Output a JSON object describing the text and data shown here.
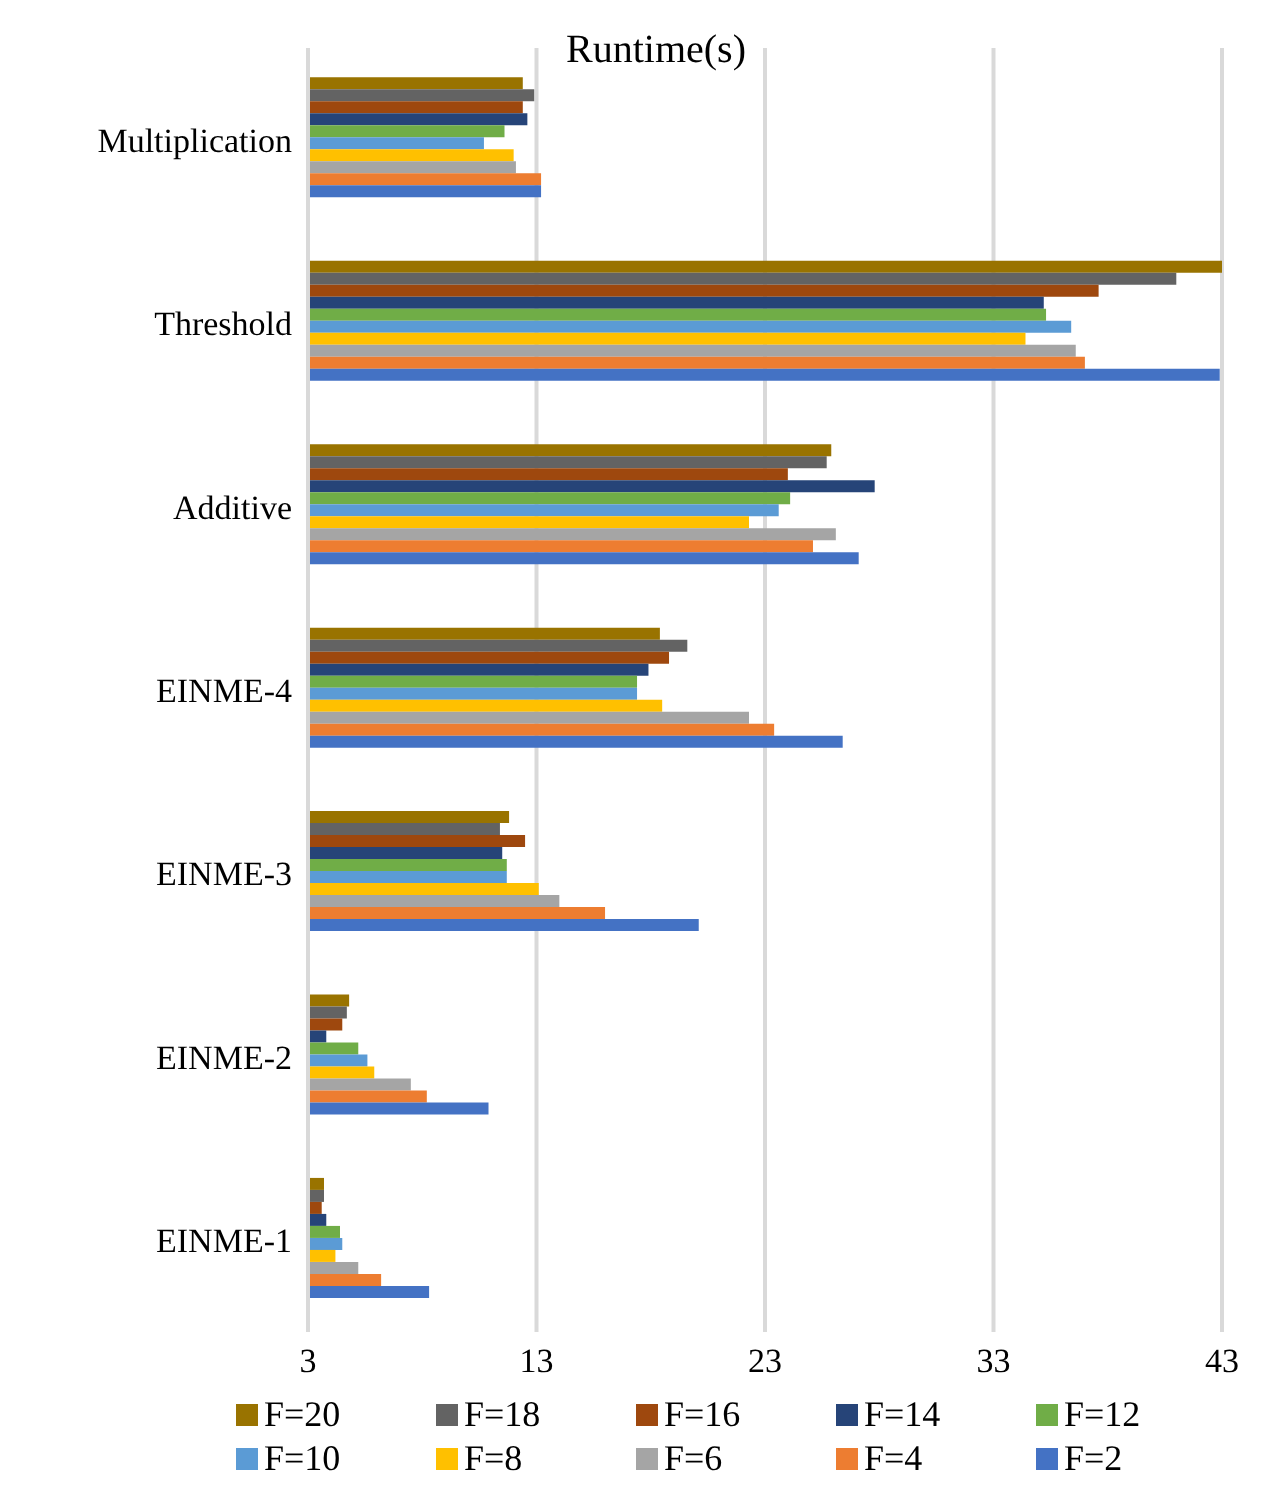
{
  "chart_data": {
    "type": "bar",
    "orientation": "horizontal",
    "title": "Runtime(s)",
    "categories": [
      "Multiplication",
      "Threshold",
      "Additive",
      "EINME-4",
      "EINME-3",
      "EINME-2",
      "EINME-1"
    ],
    "series": [
      {
        "name": "F=20",
        "color": "#997300",
        "values": [
          12.4,
          43,
          25.9,
          18.4,
          11.8,
          4.8,
          3.7
        ]
      },
      {
        "name": "F=18",
        "color": "#636363",
        "values": [
          12.9,
          41.0,
          25.7,
          19.6,
          11.4,
          4.7,
          3.7
        ]
      },
      {
        "name": "F=16",
        "color": "#9e480e",
        "values": [
          12.4,
          37.6,
          24.0,
          18.8,
          12.5,
          4.5,
          3.6
        ]
      },
      {
        "name": "F=14",
        "color": "#264478",
        "values": [
          12.6,
          35.2,
          27.8,
          17.9,
          11.5,
          3.8,
          3.8
        ]
      },
      {
        "name": "F=12",
        "color": "#70ad47",
        "values": [
          11.6,
          35.3,
          24.1,
          17.4,
          11.7,
          5.2,
          4.4
        ]
      },
      {
        "name": "F=10",
        "color": "#5b9bd5",
        "values": [
          10.7,
          36.4,
          23.6,
          17.4,
          11.7,
          5.6,
          4.5
        ]
      },
      {
        "name": "F=8",
        "color": "#ffc000",
        "values": [
          12.0,
          34.4,
          22.3,
          18.5,
          13.1,
          5.9,
          4.2
        ]
      },
      {
        "name": "F=6",
        "color": "#a5a5a5",
        "values": [
          12.1,
          36.6,
          26.1,
          22.3,
          14.0,
          7.5,
          5.2
        ]
      },
      {
        "name": "F=4",
        "color": "#ed7d31",
        "values": [
          13.2,
          37.0,
          25.1,
          23.4,
          16.0,
          8.2,
          6.2
        ]
      },
      {
        "name": "F=2",
        "color": "#4472c4",
        "values": [
          13.2,
          42.9,
          27.1,
          26.4,
          20.1,
          10.9,
          8.3
        ]
      }
    ],
    "xlim": [
      3,
      43
    ],
    "xticks": [
      3,
      13,
      23,
      33,
      43
    ],
    "grid": "x",
    "legend": "bottom"
  }
}
